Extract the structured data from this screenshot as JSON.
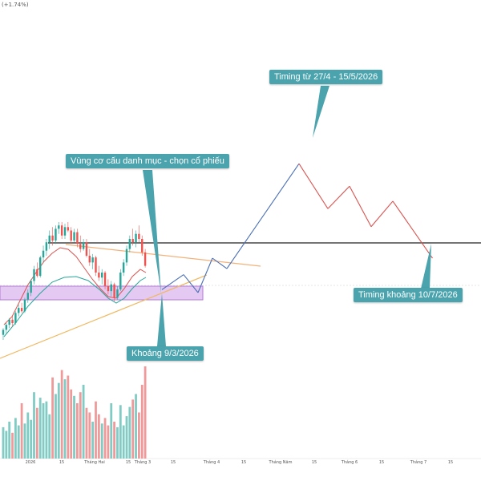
{
  "header": {
    "change_text": "(+1.74%)"
  },
  "colors": {
    "callout_bg": "#4aa3ad",
    "up_candle": "#26a69a",
    "down_candle": "#ef5350",
    "path_up": "#4a6fb5",
    "path_down": "#d9534f",
    "resistance": "#222222",
    "ma_fast": "#d9534f",
    "ma_slow": "#26a69a",
    "trend_upper": "#f2b27a",
    "trend_lower": "#f0b860",
    "zone_fill": "#e4c9f2",
    "zone_border": "#b57ad6",
    "vol_up": "#80cbc4",
    "vol_down": "#ef9a9a",
    "dashed_level": "#cccccc"
  },
  "callouts": {
    "timing_range": "Timing từ 27/4 - 15/5/2026",
    "portfolio": "Vùng cơ cấu danh mục - chọn cổ phiếu",
    "date_low": "Khoảng 9/3/2026",
    "timing_end": "Timing khoảng 10/7/2026"
  },
  "x_axis": {
    "ticks": [
      "2026",
      "15",
      "Tháng Hai",
      "15",
      "Tháng 3",
      "15",
      "Tháng 4",
      "15",
      "Tháng Năm",
      "15",
      "Tháng 6",
      "15",
      "Tháng 7",
      "15"
    ]
  },
  "chart_data": {
    "type": "candlestick",
    "title": "",
    "x_ticks": [
      "2026",
      "15",
      "Tháng Hai",
      "15",
      "Tháng 3",
      "15",
      "Tháng 4",
      "15",
      "Tháng Năm",
      "15",
      "Tháng 6",
      "15",
      "Tháng 7",
      "15"
    ],
    "candles": [
      {
        "o": 23,
        "h": 27,
        "l": 20,
        "c": 26
      },
      {
        "o": 26,
        "h": 30,
        "l": 24,
        "c": 29
      },
      {
        "o": 29,
        "h": 33,
        "l": 27,
        "c": 32
      },
      {
        "o": 32,
        "h": 34,
        "l": 28,
        "c": 30
      },
      {
        "o": 30,
        "h": 37,
        "l": 29,
        "c": 36
      },
      {
        "o": 36,
        "h": 41,
        "l": 34,
        "c": 39
      },
      {
        "o": 39,
        "h": 42,
        "l": 36,
        "c": 37
      },
      {
        "o": 37,
        "h": 45,
        "l": 36,
        "c": 44
      },
      {
        "o": 44,
        "h": 50,
        "l": 42,
        "c": 48
      },
      {
        "o": 48,
        "h": 56,
        "l": 46,
        "c": 55
      },
      {
        "o": 55,
        "h": 64,
        "l": 53,
        "c": 62
      },
      {
        "o": 62,
        "h": 66,
        "l": 57,
        "c": 58
      },
      {
        "o": 58,
        "h": 70,
        "l": 57,
        "c": 69
      },
      {
        "o": 69,
        "h": 76,
        "l": 66,
        "c": 73
      },
      {
        "o": 73,
        "h": 80,
        "l": 70,
        "c": 78
      },
      {
        "o": 78,
        "h": 85,
        "l": 74,
        "c": 82
      },
      {
        "o": 82,
        "h": 87,
        "l": 76,
        "c": 79
      },
      {
        "o": 79,
        "h": 88,
        "l": 77,
        "c": 86
      },
      {
        "o": 86,
        "h": 90,
        "l": 83,
        "c": 88
      },
      {
        "o": 88,
        "h": 90,
        "l": 80,
        "c": 82
      },
      {
        "o": 82,
        "h": 89,
        "l": 80,
        "c": 87
      },
      {
        "o": 87,
        "h": 90,
        "l": 84,
        "c": 85
      },
      {
        "o": 85,
        "h": 87,
        "l": 77,
        "c": 79
      },
      {
        "o": 79,
        "h": 86,
        "l": 78,
        "c": 84
      },
      {
        "o": 84,
        "h": 86,
        "l": 75,
        "c": 77
      },
      {
        "o": 77,
        "h": 82,
        "l": 72,
        "c": 74
      },
      {
        "o": 74,
        "h": 80,
        "l": 73,
        "c": 78
      },
      {
        "o": 78,
        "h": 80,
        "l": 69,
        "c": 70
      },
      {
        "o": 70,
        "h": 74,
        "l": 64,
        "c": 66
      },
      {
        "o": 66,
        "h": 71,
        "l": 62,
        "c": 69
      },
      {
        "o": 69,
        "h": 70,
        "l": 58,
        "c": 60
      },
      {
        "o": 60,
        "h": 64,
        "l": 55,
        "c": 57
      },
      {
        "o": 57,
        "h": 62,
        "l": 53,
        "c": 60
      },
      {
        "o": 60,
        "h": 61,
        "l": 50,
        "c": 52
      },
      {
        "o": 52,
        "h": 56,
        "l": 47,
        "c": 49
      },
      {
        "o": 49,
        "h": 55,
        "l": 46,
        "c": 53
      },
      {
        "o": 53,
        "h": 54,
        "l": 43,
        "c": 45
      },
      {
        "o": 45,
        "h": 52,
        "l": 44,
        "c": 50
      },
      {
        "o": 50,
        "h": 62,
        "l": 49,
        "c": 60
      },
      {
        "o": 60,
        "h": 68,
        "l": 58,
        "c": 66
      },
      {
        "o": 66,
        "h": 76,
        "l": 64,
        "c": 74
      },
      {
        "o": 74,
        "h": 82,
        "l": 72,
        "c": 80
      },
      {
        "o": 80,
        "h": 86,
        "l": 76,
        "c": 78
      },
      {
        "o": 78,
        "h": 85,
        "l": 75,
        "c": 83
      },
      {
        "o": 83,
        "h": 88,
        "l": 78,
        "c": 80
      },
      {
        "o": 80,
        "h": 82,
        "l": 70,
        "c": 72
      },
      {
        "o": 72,
        "h": 74,
        "l": 63,
        "c": 64
      }
    ],
    "volume": [
      34,
      30,
      40,
      28,
      44,
      36,
      60,
      38,
      50,
      42,
      72,
      55,
      66,
      60,
      62,
      48,
      88,
      70,
      82,
      96,
      86,
      90,
      75,
      68,
      60,
      72,
      80,
      55,
      50,
      40,
      62,
      48,
      38,
      44,
      36,
      60,
      40,
      34,
      58,
      36,
      46,
      56,
      64,
      70,
      50,
      80,
      100
    ],
    "projection_path": {
      "up_segments": [
        [
          0,
          56
        ],
        [
          6,
          66
        ],
        [
          10,
          54
        ],
        [
          14,
          77
        ],
        [
          18,
          70
        ],
        [
          38,
          140
        ]
      ],
      "down_segments": [
        [
          38,
          140
        ],
        [
          46,
          110
        ],
        [
          52,
          125
        ],
        [
          58,
          98
        ],
        [
          64,
          115
        ],
        [
          75,
          77
        ]
      ]
    },
    "resistance_level": 77,
    "support_zone": [
      55,
      61
    ]
  }
}
